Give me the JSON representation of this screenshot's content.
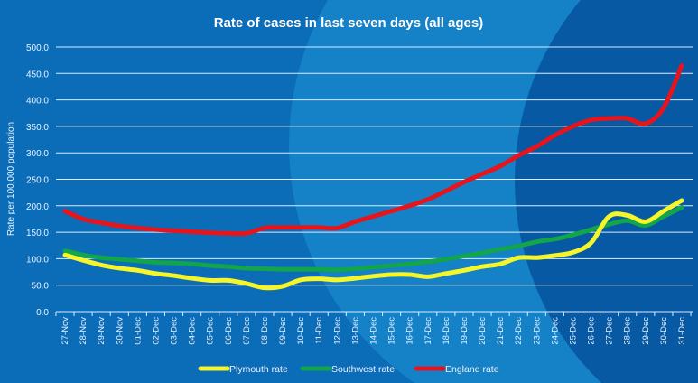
{
  "chart_data": {
    "type": "line",
    "title": "Rate of cases in last seven days (all ages)",
    "ylabel": "Rate per 100,000 population",
    "xlabel": "",
    "ylim": [
      0,
      500
    ],
    "yticks": [
      "0.0",
      "50.0",
      "100.0",
      "150.0",
      "200.0",
      "250.0",
      "300.0",
      "350.0",
      "400.0",
      "450.0",
      "500.0"
    ],
    "grid": true,
    "legend": "bottom",
    "categories": [
      "27-Nov",
      "28-Nov",
      "29-Nov",
      "30-Nov",
      "01-Dec",
      "02-Dec",
      "03-Dec",
      "04-Dec",
      "05-Dec",
      "06-Dec",
      "07-Dec",
      "08-Dec",
      "09-Dec",
      "10-Dec",
      "11-Dec",
      "12-Dec",
      "13-Dec",
      "14-Dec",
      "15-Dec",
      "16-Dec",
      "17-Dec",
      "18-Dec",
      "19-Dec",
      "20-Dec",
      "21-Dec",
      "22-Dec",
      "23-Dec",
      "24-Dec",
      "25-Dec",
      "26-Dec",
      "27-Dec",
      "28-Dec",
      "29-Dec",
      "30-Dec",
      "31-Dec"
    ],
    "series": [
      {
        "name": "Plymouth rate",
        "color": "#f5f52a",
        "values": [
          107,
          97,
          88,
          82,
          78,
          72,
          68,
          63,
          59,
          59,
          53,
          45,
          48,
          60,
          62,
          60,
          63,
          67,
          70,
          70,
          66,
          72,
          78,
          85,
          90,
          102,
          102,
          106,
          112,
          130,
          180,
          182,
          170,
          190,
          210
        ]
      },
      {
        "name": "Southwest rate",
        "color": "#12a54a",
        "values": [
          115,
          107,
          102,
          99,
          96,
          93,
          92,
          90,
          87,
          85,
          82,
          81,
          80,
          80,
          80,
          79,
          81,
          84,
          87,
          90,
          94,
          99,
          105,
          111,
          118,
          124,
          132,
          137,
          145,
          155,
          165,
          172,
          163,
          180,
          197
        ]
      },
      {
        "name": "England rate",
        "color": "#e8141c",
        "values": [
          190,
          175,
          168,
          162,
          158,
          155,
          153,
          151,
          149,
          148,
          148,
          158,
          159,
          159,
          159,
          158,
          170,
          180,
          190,
          200,
          212,
          228,
          245,
          260,
          275,
          295,
          312,
          333,
          350,
          362,
          365,
          365,
          355,
          385,
          465
        ]
      }
    ]
  }
}
